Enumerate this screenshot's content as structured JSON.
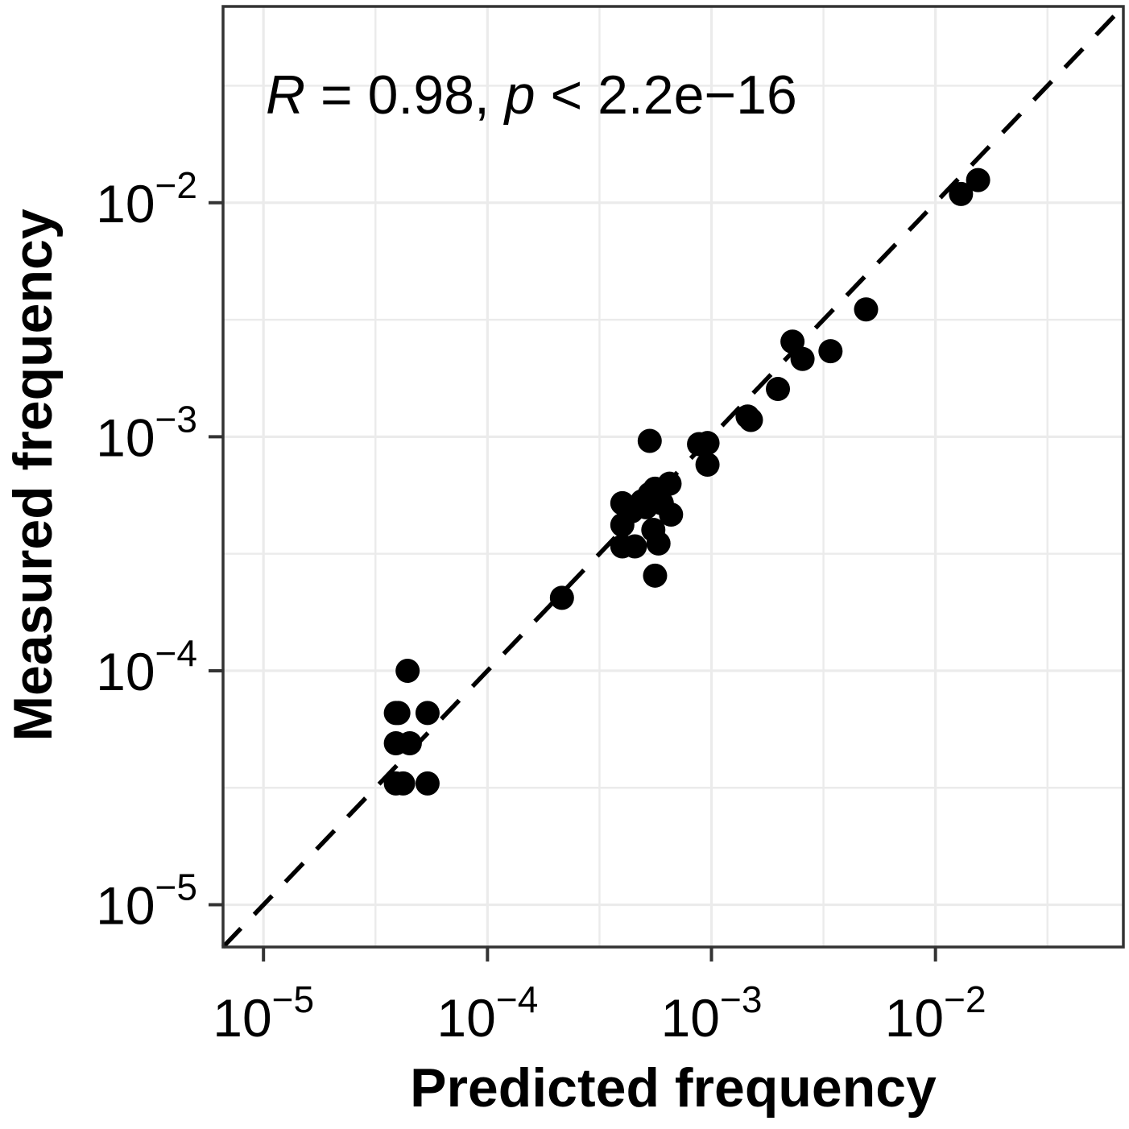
{
  "chart_data": {
    "type": "scatter",
    "title": "",
    "xlabel": "Predicted frequency",
    "ylabel": "Measured frequency",
    "x_scale": "log10",
    "y_scale": "log10",
    "xlim": [
      6.6e-06,
      0.069
    ],
    "ylim": [
      6.6e-06,
      0.069
    ],
    "grid": true,
    "legend": "none",
    "annotation": {
      "r_symbol": "R",
      "r_text": " = 0.98, ",
      "p_symbol": "p",
      "p_text": " < 2.2e−16"
    },
    "x_ticks": [
      {
        "value": 1e-05,
        "base": "10",
        "exponent": "−5"
      },
      {
        "value": 0.0001,
        "base": "10",
        "exponent": "−4"
      },
      {
        "value": 0.001,
        "base": "10",
        "exponent": "−3"
      },
      {
        "value": 0.01,
        "base": "10",
        "exponent": "−2"
      }
    ],
    "y_ticks": [
      {
        "value": 1e-05,
        "base": "10",
        "exponent": "−5"
      },
      {
        "value": 0.0001,
        "base": "10",
        "exponent": "−4"
      },
      {
        "value": 0.001,
        "base": "10",
        "exponent": "−3"
      },
      {
        "value": 0.01,
        "base": "10",
        "exponent": "−2"
      }
    ],
    "reference_line": {
      "style": "dashed",
      "slope": 1,
      "intercept": 0
    },
    "colors": {
      "points": "#000000",
      "grid": "#ebebeb",
      "panel_border": "#333333",
      "reference_line": "#000000"
    },
    "points": [
      {
        "x": 4e-05,
        "y": 6.6e-05
      },
      {
        "x": 3.9e-05,
        "y": 6.6e-05
      },
      {
        "x": 4.4e-05,
        "y": 0.0001
      },
      {
        "x": 5.4e-05,
        "y": 6.6e-05
      },
      {
        "x": 3.9e-05,
        "y": 4.9e-05
      },
      {
        "x": 4.5e-05,
        "y": 4.9e-05
      },
      {
        "x": 3.9e-05,
        "y": 3.3e-05
      },
      {
        "x": 4.2e-05,
        "y": 3.3e-05
      },
      {
        "x": 5.4e-05,
        "y": 3.3e-05
      },
      {
        "x": 0.000215,
        "y": 0.000205
      },
      {
        "x": 0.0004,
        "y": 0.00052
      },
      {
        "x": 0.0004,
        "y": 0.00042
      },
      {
        "x": 0.0004,
        "y": 0.00034
      },
      {
        "x": 0.000455,
        "y": 0.00034
      },
      {
        "x": 0.00044,
        "y": 0.00048
      },
      {
        "x": 0.00049,
        "y": 0.00053
      },
      {
        "x": 0.00051,
        "y": 0.0005
      },
      {
        "x": 0.00053,
        "y": 0.00057
      },
      {
        "x": 0.00056,
        "y": 0.0006
      },
      {
        "x": 0.0006,
        "y": 0.00052
      },
      {
        "x": 0.00065,
        "y": 0.00063
      },
      {
        "x": 0.00066,
        "y": 0.000465
      },
      {
        "x": 0.00058,
        "y": 0.00035
      },
      {
        "x": 0.00055,
        "y": 0.0004
      },
      {
        "x": 0.00053,
        "y": 0.00096
      },
      {
        "x": 0.00056,
        "y": 0.000255
      },
      {
        "x": 0.00088,
        "y": 0.00093
      },
      {
        "x": 0.00096,
        "y": 0.00094
      },
      {
        "x": 0.00096,
        "y": 0.00076
      },
      {
        "x": 0.00145,
        "y": 0.00122
      },
      {
        "x": 0.0015,
        "y": 0.00118
      },
      {
        "x": 0.00198,
        "y": 0.0016
      },
      {
        "x": 0.0023,
        "y": 0.00255
      },
      {
        "x": 0.00255,
        "y": 0.00215
      },
      {
        "x": 0.0034,
        "y": 0.00232
      },
      {
        "x": 0.0049,
        "y": 0.0035
      },
      {
        "x": 0.013,
        "y": 0.0109
      },
      {
        "x": 0.0155,
        "y": 0.0125
      }
    ]
  }
}
